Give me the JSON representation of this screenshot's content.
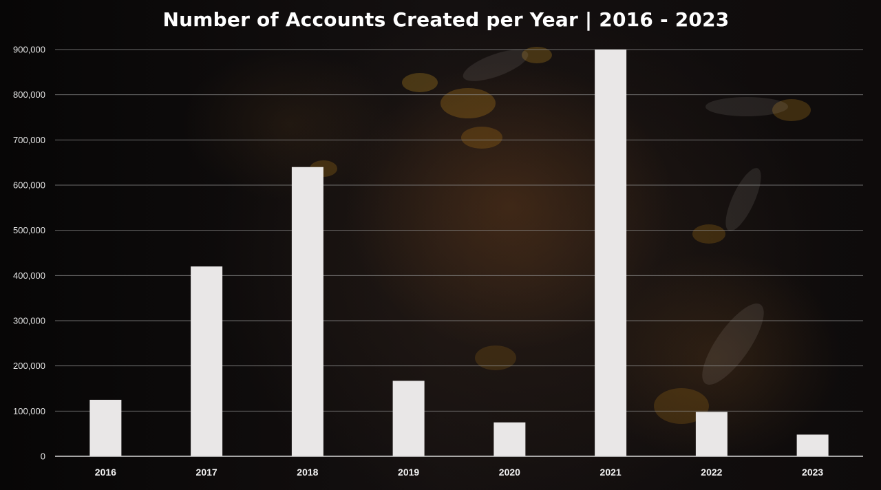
{
  "chart_data": {
    "type": "bar",
    "title": "Number of Accounts Created per Year | 2016 - 2023",
    "categories": [
      "2016",
      "2017",
      "2018",
      "2019",
      "2020",
      "2021",
      "2022",
      "2023"
    ],
    "values": [
      125000,
      420000,
      640000,
      167000,
      75000,
      900000,
      98000,
      48000
    ],
    "ylim": [
      0,
      900000
    ],
    "yticks": [
      0,
      100000,
      200000,
      300000,
      400000,
      500000,
      600000,
      700000,
      800000,
      900000
    ],
    "ytick_labels": [
      "0",
      "100,000",
      "200,000",
      "300,000",
      "400,000",
      "500,000",
      "600,000",
      "700,000",
      "800,000",
      "900,000"
    ],
    "xlabel": "",
    "ylabel": "",
    "grid": true,
    "legend": "none",
    "colors": {
      "bar": "#e9e7e7",
      "grid": "#8f8f8f",
      "background": "#0b0909"
    }
  }
}
